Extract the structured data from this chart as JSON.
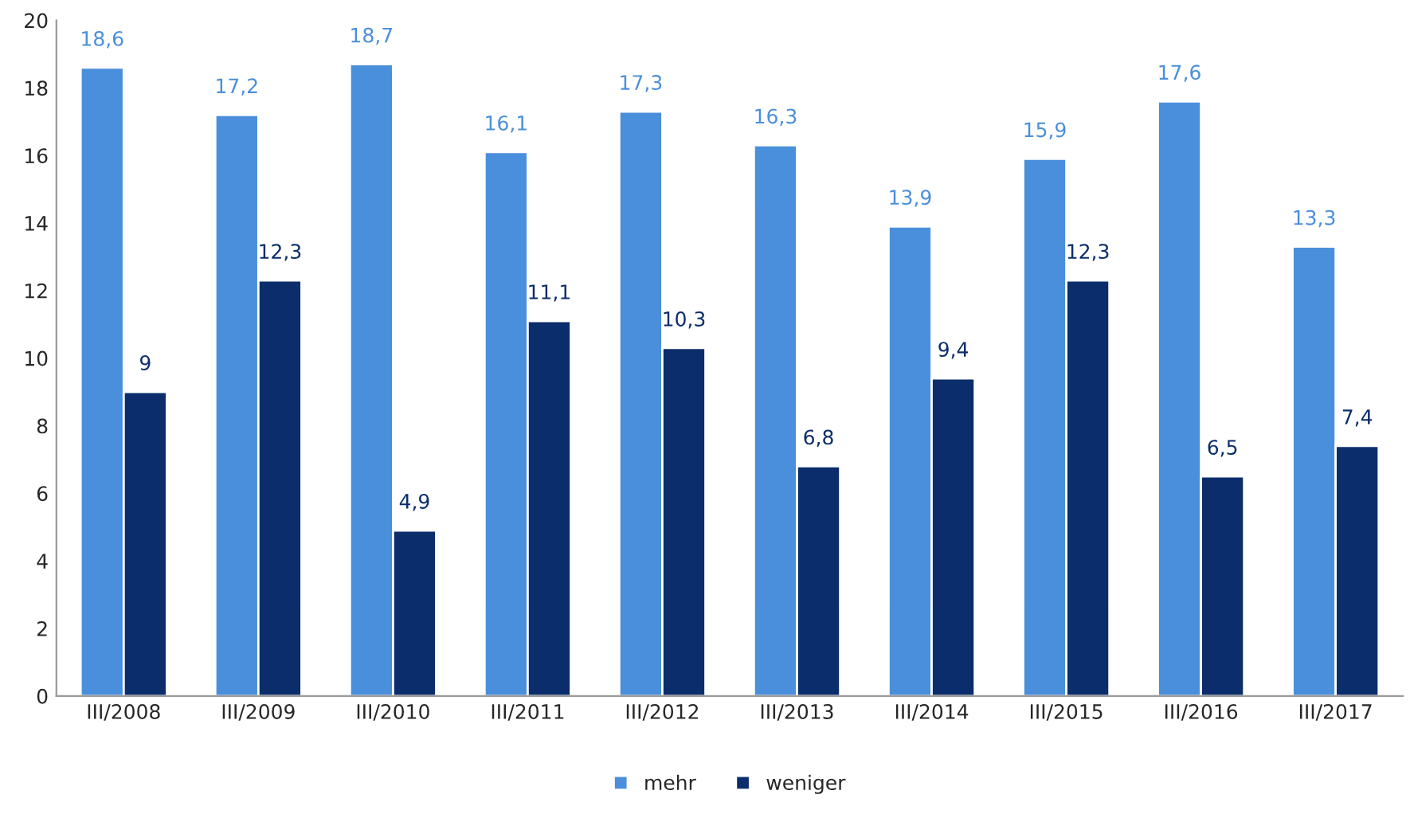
{
  "chart_data": {
    "type": "bar",
    "categories": [
      "III/2008",
      "III/2009",
      "III/2010",
      "III/2011",
      "III/2012",
      "III/2013",
      "III/2014",
      "III/2015",
      "III/2016",
      "III/2017"
    ],
    "series": [
      {
        "name": "mehr",
        "color": "#4a8fdb",
        "values": [
          18.6,
          17.2,
          18.7,
          16.1,
          17.3,
          16.3,
          13.9,
          15.9,
          17.6,
          13.3
        ],
        "value_labels": [
          "18,6",
          "17,2",
          "18,7",
          "16,1",
          "17,3",
          "16,3",
          "13,9",
          "15,9",
          "17,6",
          "13,3"
        ]
      },
      {
        "name": "weniger",
        "color": "#0b2d6b",
        "values": [
          9,
          12.3,
          4.9,
          11.1,
          10.3,
          6.8,
          9.4,
          12.3,
          6.5,
          7.4
        ],
        "value_labels": [
          "9",
          "12,3",
          "4,9",
          "11,1",
          "10,3",
          "6,8",
          "9,4",
          "12,3",
          "6,5",
          "7,4"
        ]
      }
    ],
    "ylim": [
      0,
      20
    ],
    "yticks": [
      0,
      2,
      4,
      6,
      8,
      10,
      12,
      14,
      16,
      18,
      20
    ],
    "grid": false,
    "legend": "bottom"
  }
}
